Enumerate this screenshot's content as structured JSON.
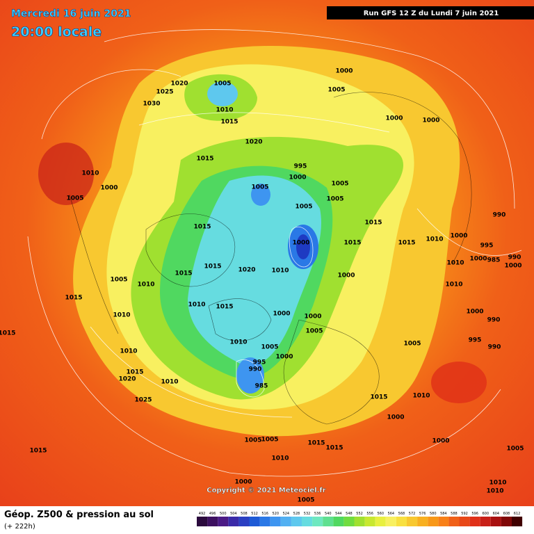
{
  "header": {
    "date": "Mercredi 16 juin 2021",
    "time": "20:00 locale",
    "run": "Run GFS 12 Z du Lundi 7 juin 2021"
  },
  "map": {
    "pressure_labels": [
      1005,
      1020,
      1025,
      1030,
      1010,
      1015,
      1000,
      1005,
      1020,
      1015,
      1000,
      1000,
      995,
      1000,
      1005,
      1005,
      1005,
      1005,
      1010,
      1000,
      1005,
      1015,
      1015,
      1000,
      1015,
      1015,
      1010,
      1000,
      990,
      995,
      1000,
      985,
      990,
      1000,
      1010,
      1015,
      1020,
      1010,
      1000,
      1005,
      1010,
      1015,
      1010,
      1015,
      1010,
      1015,
      1000,
      1000,
      1010,
      1000,
      990,
      1015,
      1010,
      1005,
      1005,
      995,
      990,
      1005,
      1000,
      995,
      990,
      985,
      1010,
      1015,
      1020,
      1010,
      1015,
      1010,
      1025,
      1000,
      1005,
      1005,
      1015,
      1015,
      1010,
      1015,
      1000,
      1005,
      1000,
      1010,
      1010,
      1005
    ]
  },
  "footer": {
    "title": "Géop. Z500 & pression au sol",
    "lead": "(+ 222h)",
    "copyright": "Copyright © 2021 Meteociel.fr"
  },
  "legend": {
    "levels": [
      492,
      496,
      500,
      504,
      508,
      512,
      516,
      520,
      524,
      528,
      532,
      536,
      540,
      544,
      548,
      552,
      556,
      560,
      564,
      568,
      572,
      576,
      580,
      584,
      588,
      592,
      596,
      600,
      604,
      608,
      612
    ],
    "colors": [
      "#2b0a3d",
      "#3d1060",
      "#4b1a85",
      "#3a2aa8",
      "#2a3fc2",
      "#1e5ad6",
      "#2a78e6",
      "#3e95f0",
      "#52b0f2",
      "#5ec8ee",
      "#66dce0",
      "#6ee8c0",
      "#5fe090",
      "#50d860",
      "#70dc40",
      "#a0e030",
      "#c8e830",
      "#e8f040",
      "#f8f060",
      "#f8e040",
      "#f8c830",
      "#f8b020",
      "#f89818",
      "#f88018",
      "#f06018",
      "#e84818",
      "#e03018",
      "#c82018",
      "#a81010",
      "#800808",
      "#400000"
    ]
  }
}
